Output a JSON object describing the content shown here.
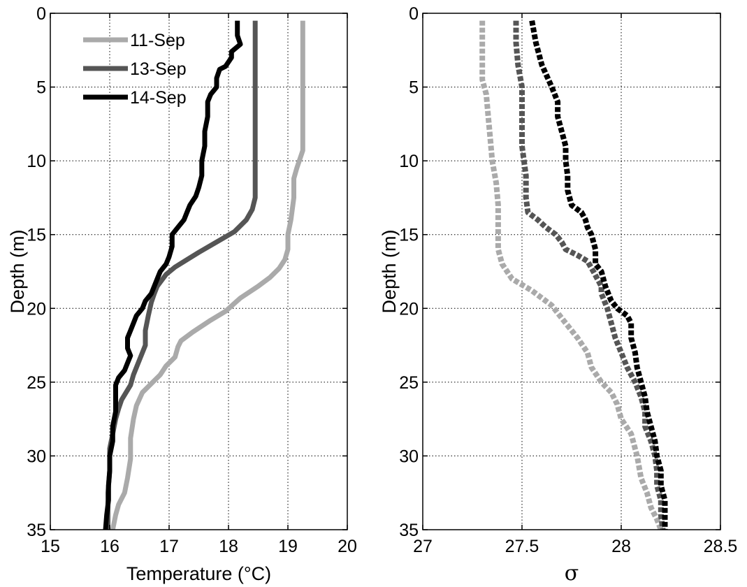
{
  "chart_data": [
    {
      "type": "line",
      "xlabel": "Temperature (°C)",
      "ylabel": "Depth (m)",
      "xlim": [
        15,
        20
      ],
      "ylim": [
        0,
        35
      ],
      "y_reversed": true,
      "xticks": [
        "15",
        "16",
        "17",
        "18",
        "19",
        "20"
      ],
      "yticks": [
        "0",
        "5",
        "10",
        "15",
        "20",
        "25",
        "30",
        "35"
      ],
      "grid": true,
      "legend_position": "top-left",
      "series": [
        {
          "name": "11-Sep",
          "color": "#aaaaaa",
          "style": "solid",
          "points": [
            [
              19.25,
              0.5
            ],
            [
              19.25,
              3
            ],
            [
              19.25,
              6
            ],
            [
              19.25,
              8
            ],
            [
              19.25,
              9.3
            ],
            [
              19.15,
              10.5
            ],
            [
              19.1,
              11.2
            ],
            [
              19.1,
              12.5
            ],
            [
              19.05,
              14
            ],
            [
              19.0,
              15
            ],
            [
              19.0,
              16
            ],
            [
              18.95,
              16.7
            ],
            [
              18.85,
              17.3
            ],
            [
              18.7,
              17.9
            ],
            [
              18.5,
              18.5
            ],
            [
              18.2,
              19.3
            ],
            [
              17.95,
              20.2
            ],
            [
              17.7,
              20.8
            ],
            [
              17.4,
              21.6
            ],
            [
              17.2,
              22.2
            ],
            [
              17.15,
              22.6
            ],
            [
              17.1,
              23.3
            ],
            [
              16.95,
              23.9
            ],
            [
              16.85,
              24.5
            ],
            [
              16.7,
              25.1
            ],
            [
              16.55,
              25.7
            ],
            [
              16.45,
              26.6
            ],
            [
              16.4,
              27.5
            ],
            [
              16.35,
              28.8
            ],
            [
              16.35,
              30.2
            ],
            [
              16.3,
              31.5
            ],
            [
              16.25,
              32.5
            ],
            [
              16.15,
              33.3
            ],
            [
              16.1,
              34
            ],
            [
              16.05,
              35
            ]
          ]
        },
        {
          "name": "13-Sep",
          "color": "#555555",
          "style": "solid",
          "points": [
            [
              18.45,
              0.5
            ],
            [
              18.45,
              3
            ],
            [
              18.45,
              6
            ],
            [
              18.45,
              9
            ],
            [
              18.45,
              11
            ],
            [
              18.45,
              12.5
            ],
            [
              18.4,
              13.3
            ],
            [
              18.3,
              14
            ],
            [
              18.1,
              14.8
            ],
            [
              17.8,
              15.5
            ],
            [
              17.5,
              16.2
            ],
            [
              17.3,
              16.7
            ],
            [
              17.1,
              17.2
            ],
            [
              16.95,
              17.7
            ],
            [
              16.8,
              18.5
            ],
            [
              16.75,
              19
            ],
            [
              16.7,
              19.6
            ],
            [
              16.65,
              20.5
            ],
            [
              16.6,
              21.5
            ],
            [
              16.6,
              22.5
            ],
            [
              16.5,
              23.5
            ],
            [
              16.4,
              24.5
            ],
            [
              16.35,
              25.2
            ],
            [
              16.2,
              26.2
            ],
            [
              16.15,
              26.8
            ],
            [
              16.1,
              27.5
            ],
            [
              16.05,
              28.5
            ],
            [
              16.0,
              29.5
            ],
            [
              16.0,
              31
            ],
            [
              15.97,
              32.5
            ],
            [
              15.97,
              34
            ],
            [
              15.97,
              35
            ]
          ]
        },
        {
          "name": "14-Sep",
          "color": "#000000",
          "style": "solid",
          "points": [
            [
              18.15,
              0.5
            ],
            [
              18.15,
              1.5
            ],
            [
              18.2,
              2.1
            ],
            [
              18.05,
              2.6
            ],
            [
              18.05,
              3
            ],
            [
              17.95,
              3.6
            ],
            [
              17.85,
              3.8
            ],
            [
              17.8,
              4.4
            ],
            [
              17.8,
              5
            ],
            [
              17.7,
              5.5
            ],
            [
              17.65,
              6
            ],
            [
              17.65,
              7
            ],
            [
              17.6,
              8
            ],
            [
              17.6,
              9
            ],
            [
              17.55,
              10
            ],
            [
              17.55,
              11
            ],
            [
              17.5,
              11.8
            ],
            [
              17.45,
              12.4
            ],
            [
              17.35,
              13
            ],
            [
              17.3,
              13.5
            ],
            [
              17.25,
              14
            ],
            [
              17.15,
              14.5
            ],
            [
              17.05,
              15
            ],
            [
              17.05,
              15.8
            ],
            [
              17.0,
              16.5
            ],
            [
              16.95,
              17
            ],
            [
              16.85,
              17.5
            ],
            [
              16.8,
              18
            ],
            [
              16.75,
              18.5
            ],
            [
              16.7,
              19
            ],
            [
              16.6,
              19.5
            ],
            [
              16.55,
              20
            ],
            [
              16.45,
              20.5
            ],
            [
              16.4,
              21
            ],
            [
              16.35,
              21.5
            ],
            [
              16.3,
              22
            ],
            [
              16.3,
              22.7
            ],
            [
              16.35,
              23.2
            ],
            [
              16.3,
              23.7
            ],
            [
              16.25,
              24.2
            ],
            [
              16.15,
              24.7
            ],
            [
              16.1,
              25.2
            ],
            [
              16.1,
              26
            ],
            [
              16.1,
              27
            ],
            [
              16.05,
              28
            ],
            [
              16.05,
              29
            ],
            [
              16.0,
              30
            ],
            [
              16.0,
              31
            ],
            [
              15.98,
              32
            ],
            [
              15.98,
              33
            ],
            [
              15.95,
              34
            ],
            [
              15.93,
              35
            ]
          ]
        }
      ]
    },
    {
      "type": "line",
      "xlabel": "σ",
      "ylabel": "Depth (m)",
      "xlim": [
        27,
        28.5
      ],
      "ylim": [
        0,
        35
      ],
      "y_reversed": true,
      "xticks": [
        "27",
        "27.5",
        "28",
        "28.5"
      ],
      "yticks": [
        "0",
        "5",
        "10",
        "15",
        "20",
        "25",
        "30",
        "35"
      ],
      "grid": true,
      "series": [
        {
          "name": "11-Sep",
          "color": "#aaaaaa",
          "style": "dashed",
          "points": [
            [
              27.3,
              0.5
            ],
            [
              27.3,
              2.5
            ],
            [
              27.3,
              4.5
            ],
            [
              27.32,
              5.5
            ],
            [
              27.33,
              7
            ],
            [
              27.34,
              8.5
            ],
            [
              27.35,
              10
            ],
            [
              27.37,
              11.5
            ],
            [
              27.38,
              13
            ],
            [
              27.38,
              14.5
            ],
            [
              27.38,
              16
            ],
            [
              27.4,
              17
            ],
            [
              27.45,
              18
            ],
            [
              27.55,
              18.8
            ],
            [
              27.65,
              19.8
            ],
            [
              27.72,
              21
            ],
            [
              27.78,
              22
            ],
            [
              27.83,
              23
            ],
            [
              27.85,
              24
            ],
            [
              27.9,
              25
            ],
            [
              27.95,
              25.7
            ],
            [
              27.98,
              26.5
            ],
            [
              28.0,
              27.5
            ],
            [
              28.05,
              28.5
            ],
            [
              28.08,
              30
            ],
            [
              28.1,
              31.5
            ],
            [
              28.13,
              32.5
            ],
            [
              28.15,
              33.5
            ],
            [
              28.18,
              34.3
            ],
            [
              28.2,
              35
            ]
          ]
        },
        {
          "name": "13-Sep",
          "color": "#555555",
          "style": "dashed",
          "points": [
            [
              27.47,
              0.5
            ],
            [
              27.47,
              2
            ],
            [
              27.48,
              3.5
            ],
            [
              27.5,
              5
            ],
            [
              27.5,
              7
            ],
            [
              27.5,
              9
            ],
            [
              27.52,
              11
            ],
            [
              27.52,
              12.5
            ],
            [
              27.53,
              13.5
            ],
            [
              27.58,
              14
            ],
            [
              27.62,
              14.5
            ],
            [
              27.67,
              15
            ],
            [
              27.7,
              15.5
            ],
            [
              27.72,
              16
            ],
            [
              27.78,
              16.4
            ],
            [
              27.83,
              16.8
            ],
            [
              27.86,
              17.5
            ],
            [
              27.88,
              18
            ],
            [
              27.9,
              18.5
            ],
            [
              27.9,
              19
            ],
            [
              27.93,
              20
            ],
            [
              27.95,
              21
            ],
            [
              27.97,
              22
            ],
            [
              28.0,
              23
            ],
            [
              28.03,
              24
            ],
            [
              28.07,
              25
            ],
            [
              28.1,
              26
            ],
            [
              28.12,
              27
            ],
            [
              28.12,
              28
            ],
            [
              28.15,
              29
            ],
            [
              28.17,
              30
            ],
            [
              28.18,
              31
            ],
            [
              28.18,
              32
            ],
            [
              28.2,
              33
            ],
            [
              28.2,
              34
            ],
            [
              28.21,
              35
            ]
          ]
        },
        {
          "name": "14-Sep",
          "color": "#000000",
          "style": "dashed",
          "points": [
            [
              27.55,
              0.5
            ],
            [
              27.57,
              2
            ],
            [
              27.6,
              3.5
            ],
            [
              27.65,
              5
            ],
            [
              27.68,
              6
            ],
            [
              27.68,
              7
            ],
            [
              27.7,
              8
            ],
            [
              27.72,
              9
            ],
            [
              27.72,
              10
            ],
            [
              27.73,
              11
            ],
            [
              27.73,
              12
            ],
            [
              27.75,
              13
            ],
            [
              27.8,
              13.5
            ],
            [
              27.82,
              14
            ],
            [
              27.83,
              14.5
            ],
            [
              27.85,
              15
            ],
            [
              27.87,
              16
            ],
            [
              27.87,
              17
            ],
            [
              27.9,
              17.5
            ],
            [
              27.92,
              18.5
            ],
            [
              27.95,
              19.5
            ],
            [
              27.98,
              20
            ],
            [
              28.03,
              20.5
            ],
            [
              28.05,
              21
            ],
            [
              28.05,
              22
            ],
            [
              28.07,
              23
            ],
            [
              28.08,
              24
            ],
            [
              28.1,
              25
            ],
            [
              28.12,
              26
            ],
            [
              28.13,
              27
            ],
            [
              28.15,
              28
            ],
            [
              28.17,
              29
            ],
            [
              28.18,
              30
            ],
            [
              28.2,
              31
            ],
            [
              28.2,
              32
            ],
            [
              28.22,
              33
            ],
            [
              28.22,
              34
            ],
            [
              28.22,
              35
            ]
          ]
        }
      ]
    }
  ]
}
